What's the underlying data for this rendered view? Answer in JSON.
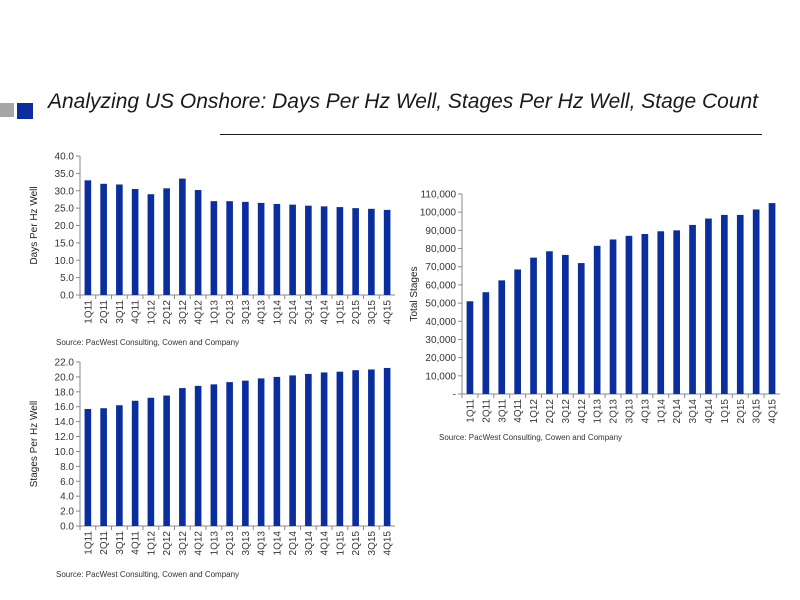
{
  "title": "Analyzing US Onshore: Days Per Hz Well, Stages Per Hz Well, Stage Count",
  "colors": {
    "accent": "#0b2e9e",
    "bar": "#0b2e9e",
    "accent_gray": "#a6a6a6"
  },
  "chart_data": [
    {
      "type": "bar",
      "ylabel": "Days Per Hz Well",
      "xlabel": "",
      "ylim": [
        0,
        40
      ],
      "yticks": [
        "0.0",
        "5.0",
        "10.0",
        "15.0",
        "20.0",
        "25.0",
        "30.0",
        "35.0",
        "40.0"
      ],
      "categories": [
        "1Q11",
        "2Q11",
        "3Q11",
        "4Q11",
        "1Q12",
        "2Q12",
        "3Q12",
        "4Q12",
        "1Q13",
        "2Q13",
        "3Q13",
        "4Q13",
        "1Q14",
        "2Q14",
        "3Q14",
        "4Q14",
        "1Q15",
        "2Q15",
        "3Q15",
        "4Q15"
      ],
      "values": [
        33.0,
        32.0,
        31.8,
        30.5,
        29.0,
        30.7,
        33.5,
        30.2,
        27.0,
        27.0,
        26.8,
        26.5,
        26.2,
        26.0,
        25.7,
        25.5,
        25.3,
        25.0,
        24.8,
        24.5
      ],
      "source": "Source:  PacWest Consulting, Cowen and Company",
      "grid": false
    },
    {
      "type": "bar",
      "ylabel": "Stages Per Hz Well",
      "xlabel": "",
      "ylim": [
        0,
        22
      ],
      "yticks": [
        "0.0",
        "2.0",
        "4.0",
        "6.0",
        "8.0",
        "10.0",
        "12.0",
        "14.0",
        "16.0",
        "18.0",
        "20.0",
        "22.0"
      ],
      "categories": [
        "1Q11",
        "2Q11",
        "3Q11",
        "4Q11",
        "1Q12",
        "2Q12",
        "3Q12",
        "4Q12",
        "1Q13",
        "2Q13",
        "3Q13",
        "4Q13",
        "1Q14",
        "2Q14",
        "3Q14",
        "4Q14",
        "1Q15",
        "2Q15",
        "3Q15",
        "4Q15"
      ],
      "values": [
        15.7,
        15.8,
        16.2,
        16.8,
        17.2,
        17.5,
        18.5,
        18.8,
        19.0,
        19.3,
        19.5,
        19.8,
        20.0,
        20.2,
        20.4,
        20.6,
        20.7,
        20.9,
        21.0,
        21.2
      ],
      "source": "Source:  PacWest Consulting, Cowen and Company",
      "grid": false
    },
    {
      "type": "bar",
      "ylabel": "Total Stages",
      "xlabel": "",
      "ylim": [
        0,
        110000
      ],
      "yticks": [
        "-",
        "10,000",
        "20,000",
        "30,000",
        "40,000",
        "50,000",
        "60,000",
        "70,000",
        "80,000",
        "90,000",
        "100,000",
        "110,000"
      ],
      "categories": [
        "1Q11",
        "2Q11",
        "3Q11",
        "4Q11",
        "1Q12",
        "2Q12",
        "3Q12",
        "4Q12",
        "1Q13",
        "2Q13",
        "3Q13",
        "4Q13",
        "1Q14",
        "2Q14",
        "3Q14",
        "4Q14",
        "1Q15",
        "2Q15",
        "3Q15",
        "4Q15"
      ],
      "values": [
        51000,
        56000,
        62500,
        68500,
        75000,
        78500,
        76500,
        72000,
        81500,
        85000,
        87000,
        88000,
        89500,
        90000,
        93000,
        96500,
        98500,
        98500,
        101500,
        105000
      ],
      "source": "Source:  PacWest Consulting, Cowen and Company",
      "grid": false
    }
  ]
}
